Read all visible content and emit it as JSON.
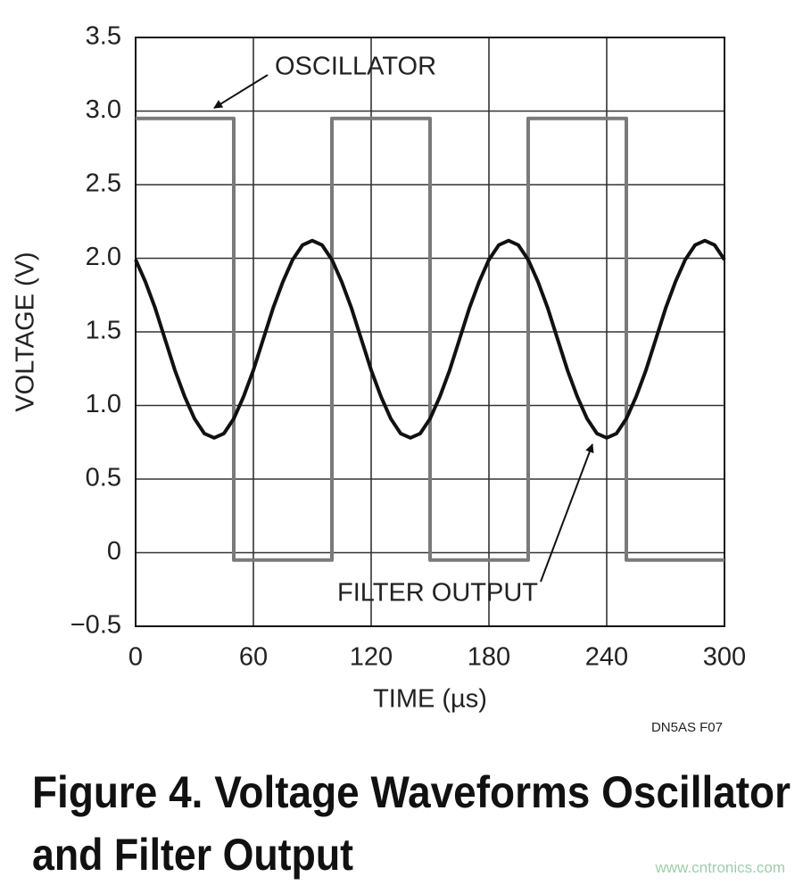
{
  "chart_data": {
    "type": "line",
    "title": [
      "Figure 4. Voltage Waveforms Oscillator",
      "and Filter Output"
    ],
    "xlabel": "TIME (µs)",
    "ylabel": "VOLTAGE (V)",
    "note": "DN5AS F07",
    "watermark": "www.cntronics.com",
    "xlim": [
      0,
      300
    ],
    "xticks": [
      0,
      60,
      120,
      180,
      240,
      300
    ],
    "ylim": [
      -0.5,
      3.5
    ],
    "yticks": [
      {
        "value": -0.5,
        "label": "−0.5"
      },
      0,
      0.5,
      {
        "value": 1.0,
        "label": "1.0"
      },
      1.5,
      {
        "value": 2.0,
        "label": "2.0"
      },
      2.5,
      {
        "value": 3.0,
        "label": "3.0"
      },
      3.5
    ],
    "grid": true,
    "series": [
      {
        "name": "OSCILLATOR",
        "color": "#7a7a7a",
        "x": [
          0,
          50,
          50,
          100,
          100,
          150,
          150,
          200,
          200,
          250,
          250,
          300
        ],
        "values": [
          2.95,
          2.95,
          -0.05,
          -0.05,
          2.95,
          2.95,
          -0.05,
          -0.05,
          2.95,
          2.95,
          -0.05,
          -0.05
        ]
      },
      {
        "name": "FILTER OUTPUT",
        "color": "#111111",
        "x": [
          0,
          5,
          10,
          15,
          20,
          25,
          30,
          35,
          40,
          45,
          50,
          55,
          60,
          65,
          70,
          75,
          80,
          85,
          90,
          95,
          100,
          105,
          110,
          115,
          120,
          125,
          130,
          135,
          140,
          145,
          150,
          155,
          160,
          165,
          170,
          175,
          180,
          185,
          190,
          195,
          200,
          205,
          210,
          215,
          220,
          225,
          230,
          235,
          240,
          245,
          250,
          255,
          260,
          265,
          270,
          275,
          280,
          285,
          290,
          295,
          300
        ],
        "values": [
          1.99,
          1.84,
          1.66,
          1.45,
          1.24,
          1.06,
          0.91,
          0.81,
          0.78,
          0.81,
          0.91,
          1.06,
          1.24,
          1.45,
          1.66,
          1.84,
          1.99,
          2.09,
          2.12,
          2.09,
          1.99,
          1.84,
          1.66,
          1.45,
          1.24,
          1.06,
          0.91,
          0.81,
          0.78,
          0.81,
          0.91,
          1.06,
          1.24,
          1.45,
          1.66,
          1.84,
          1.99,
          2.09,
          2.12,
          2.09,
          1.99,
          1.84,
          1.66,
          1.45,
          1.24,
          1.06,
          0.91,
          0.81,
          0.78,
          0.81,
          0.91,
          1.06,
          1.24,
          1.45,
          1.66,
          1.84,
          1.99,
          2.09,
          2.12,
          2.09,
          1.99
        ]
      }
    ]
  }
}
